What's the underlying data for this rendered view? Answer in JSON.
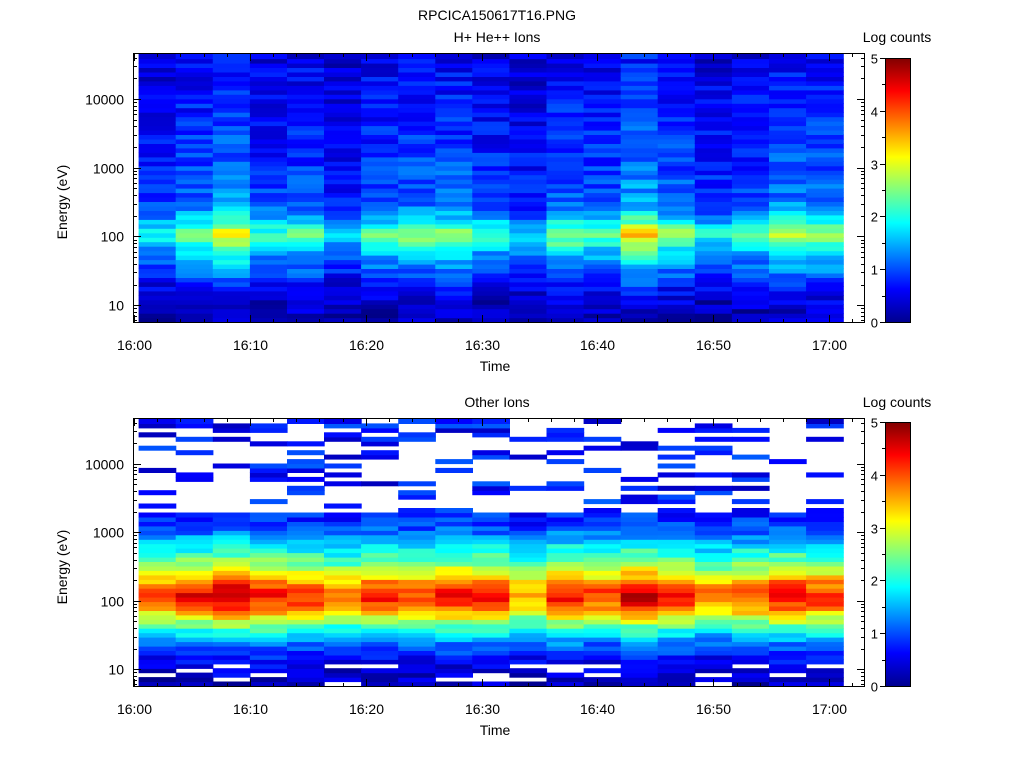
{
  "figure_title": "RPCICA150617T16.PNG",
  "chart_data": [
    {
      "type": "heatmap",
      "title": "H+ He++ Ions",
      "xlabel": "Time",
      "ylabel": "Energy (eV)",
      "x_tick_labels": [
        "16:00",
        "16:10",
        "16:20",
        "16:30",
        "16:40",
        "16:50",
        "17:00"
      ],
      "y_tick_labels": [
        "10",
        "100",
        "1000",
        "10000"
      ],
      "y_scale": "log",
      "ylim": [
        5.7,
        45000
      ],
      "xlim_minutes": [
        0,
        63
      ],
      "data_extent_minutes": [
        0.4,
        61.2
      ],
      "colorbar": {
        "label": "Log counts",
        "range": [
          0,
          5
        ],
        "tick_labels": [
          "0",
          "1",
          "2",
          "3",
          "4",
          "5"
        ],
        "colormap": "jet"
      },
      "time_bins_minutes": [
        0.4,
        3.6,
        6.8,
        10.0,
        13.2,
        16.4,
        19.6,
        22.8,
        26.0,
        29.2,
        32.4,
        35.6,
        38.8,
        42.0,
        45.2,
        48.4,
        51.6,
        54.8,
        58.0,
        61.2
      ],
      "energy_profile": {
        "energy_eV": [
          5.7,
          8,
          12,
          16,
          20,
          25,
          30,
          40,
          55,
          70,
          90,
          110,
          130,
          160,
          200,
          260,
          350,
          500,
          700,
          1000,
          1500,
          2500,
          4000,
          7000,
          12000,
          20000,
          30000,
          45000
        ],
        "log_counts": [
          0.3,
          0.35,
          0.45,
          0.6,
          0.75,
          0.95,
          1.1,
          1.35,
          1.6,
          1.9,
          2.4,
          2.6,
          2.3,
          1.9,
          1.55,
          1.25,
          1.1,
          1.05,
          1.0,
          0.95,
          0.9,
          0.85,
          0.8,
          0.75,
          0.7,
          0.65,
          0.6,
          0.55
        ]
      },
      "peak_log_counts_by_bin": [
        2.0,
        2.6,
        3.2,
        2.2,
        2.4,
        1.6,
        2.4,
        2.6,
        2.7,
        2.2,
        1.8,
        2.6,
        2.4,
        3.4,
        2.6,
        2.0,
        2.3,
        2.9,
        2.8
      ]
    },
    {
      "type": "heatmap",
      "title": "Other Ions",
      "xlabel": "Time",
      "ylabel": "Energy (eV)",
      "x_tick_labels": [
        "16:00",
        "16:10",
        "16:20",
        "16:30",
        "16:40",
        "16:50",
        "17:00"
      ],
      "y_tick_labels": [
        "10",
        "100",
        "1000",
        "10000"
      ],
      "y_scale": "log",
      "ylim": [
        5.7,
        45000
      ],
      "xlim_minutes": [
        0,
        63
      ],
      "data_extent_minutes": [
        0.4,
        61.2
      ],
      "colorbar": {
        "label": "Log counts",
        "range": [
          0,
          5
        ],
        "tick_labels": [
          "0",
          "1",
          "2",
          "3",
          "4",
          "5"
        ],
        "colormap": "jet"
      },
      "time_bins_minutes": [
        0.4,
        3.6,
        6.8,
        10.0,
        13.2,
        16.4,
        19.6,
        22.8,
        26.0,
        29.2,
        32.4,
        35.6,
        38.8,
        42.0,
        45.2,
        48.4,
        51.6,
        54.8,
        58.0,
        61.2
      ],
      "energy_profile": {
        "energy_eV": [
          5.7,
          8,
          10,
          13,
          16,
          20,
          25,
          30,
          38,
          48,
          60,
          75,
          95,
          120,
          150,
          190,
          240,
          300,
          400,
          550,
          750,
          1000,
          1500,
          2500,
          4000,
          7000,
          12000,
          20000,
          30000,
          45000
        ],
        "log_counts": [
          0.3,
          0.4,
          0.5,
          0.6,
          0.8,
          1.0,
          1.3,
          1.7,
          2.1,
          2.6,
          3.2,
          3.8,
          4.2,
          4.4,
          4.2,
          3.8,
          3.3,
          2.9,
          2.4,
          2.0,
          1.6,
          1.2,
          0.9,
          0.7,
          0.55,
          0.5,
          0.45,
          0.4,
          0.35,
          0.3
        ]
      },
      "peak_log_counts_by_bin": [
        4.0,
        4.4,
        4.7,
        4.4,
        4.2,
        3.9,
        4.3,
        4.0,
        4.4,
        4.3,
        3.6,
        4.4,
        4.1,
        4.6,
        4.3,
        3.8,
        4.1,
        4.4,
        4.2
      ]
    }
  ]
}
